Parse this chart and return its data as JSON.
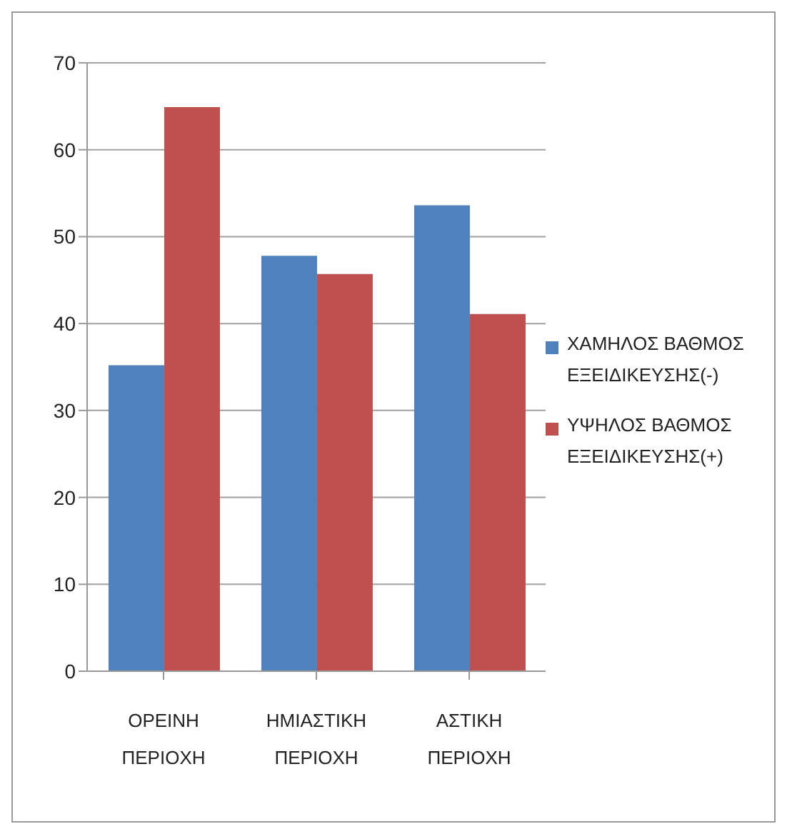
{
  "chart_data": {
    "type": "bar",
    "categories": [
      "ΟΡΕΙΝΗ ΠΕΡΙΟΧΗ",
      "ΗΜΙΑΣΤΙΚΗ ΠΕΡΙΟΧΗ",
      "ΑΣΤΙΚΗ ΠΕΡΙΟΧΗ"
    ],
    "series": [
      {
        "name": "ΧΑΜΗΛΟΣ ΒΑΘΜΟΣ ΕΞΕΙΔΙΚΕΥΣΗΣ(-)",
        "color": "#4f81bd",
        "values": [
          35.2,
          47.8,
          53.6
        ]
      },
      {
        "name": "ΥΨΗΛΟΣ ΒΑΘΜΟΣ ΕΞΕΙΔΙΚΕΥΣΗΣ(+)",
        "color": "#c0504d",
        "values": [
          64.9,
          45.7,
          41.1
        ]
      }
    ],
    "ylim": [
      0,
      70
    ],
    "yticks": [
      0,
      10,
      20,
      30,
      40,
      50,
      60,
      70
    ],
    "grid": "y",
    "legend": "right"
  }
}
